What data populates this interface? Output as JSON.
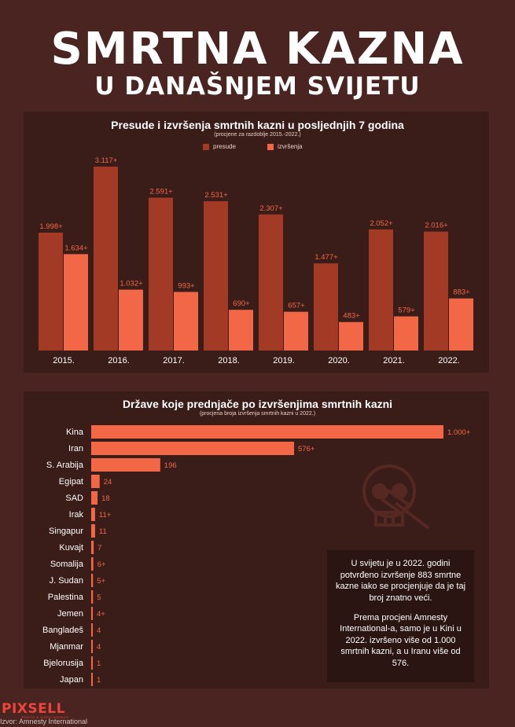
{
  "header": {
    "title": "SMRTNA KAZNA",
    "subtitle": "U DANAŠNJEM SVIJETU"
  },
  "colors": {
    "background": "#4a2420",
    "panel": "#3a1c19",
    "presude": "#a33a26",
    "izvrsenja": "#f26846",
    "text": "#ffffff",
    "label": "#f26846"
  },
  "chart_data": [
    {
      "type": "bar",
      "title": "Presude i izvršenja smrtnih kazni u posljednjih 7 godina",
      "subtitle": "(procjene za razdoblje 2015.-2022.)",
      "categories": [
        "2015.",
        "2016.",
        "2017.",
        "2018.",
        "2019.",
        "2020.",
        "2021.",
        "2022."
      ],
      "series": [
        {
          "name": "presude",
          "values": [
            1998,
            3117,
            2591,
            2531,
            2307,
            1477,
            2052,
            2016
          ],
          "labels": [
            "1.998+",
            "3.117+",
            "2.591+",
            "2.531+",
            "2.307+",
            "1.477+",
            "2.052+",
            "2.016+"
          ]
        },
        {
          "name": "izvršenja",
          "values": [
            1634,
            1032,
            993,
            690,
            657,
            483,
            579,
            883
          ],
          "labels": [
            "1.634+",
            "1.032+",
            "993+",
            "690+",
            "657+",
            "483+",
            "579+",
            "883+"
          ]
        }
      ],
      "ylim": [
        0,
        3200
      ],
      "legend": "top-center"
    },
    {
      "type": "bar",
      "orientation": "horizontal",
      "title": "Države koje prednjače po izvršenjima smrtnih kazni",
      "subtitle": "(procjena broja izvršenja smrtnih kazni u 2022.)",
      "categories": [
        "Kina",
        "Iran",
        "S. Arabija",
        "Egipat",
        "SAD",
        "Irak",
        "Singapur",
        "Kuvajt",
        "Somalija",
        "J. Sudan",
        "Palestina",
        "Jemen",
        "Bangladeš",
        "Mjanmar",
        "Bjelorusija",
        "Japan"
      ],
      "values": [
        1000,
        576,
        196,
        24,
        18,
        11,
        11,
        7,
        6,
        5,
        5,
        4,
        4,
        4,
        1,
        1
      ],
      "labels": [
        "1.000+",
        "576+",
        "196",
        "24",
        "18",
        "11+",
        "11",
        "7",
        "6+",
        "5+",
        "5",
        "4+",
        "4",
        "4",
        "1",
        "1"
      ],
      "xlim": [
        0,
        1000
      ]
    }
  ],
  "infobox": {
    "paragraph1": "U svijetu je u 2022. godini potvrđeno izvršenje 883 smrtne kazne iako se procjenjuje da je taj broj znatno veći.",
    "paragraph2": "Prema procjeni Amnesty International-a, samo je u Kini u 2022. izvršeno više od 1.000 smrtnih kazni, a u Iranu više od 576."
  },
  "footer": {
    "logo": "PIXSELL",
    "logo_tagline": "PHOTO & VIDEO AGENCY",
    "source": "Izvor: Amnesty International"
  }
}
